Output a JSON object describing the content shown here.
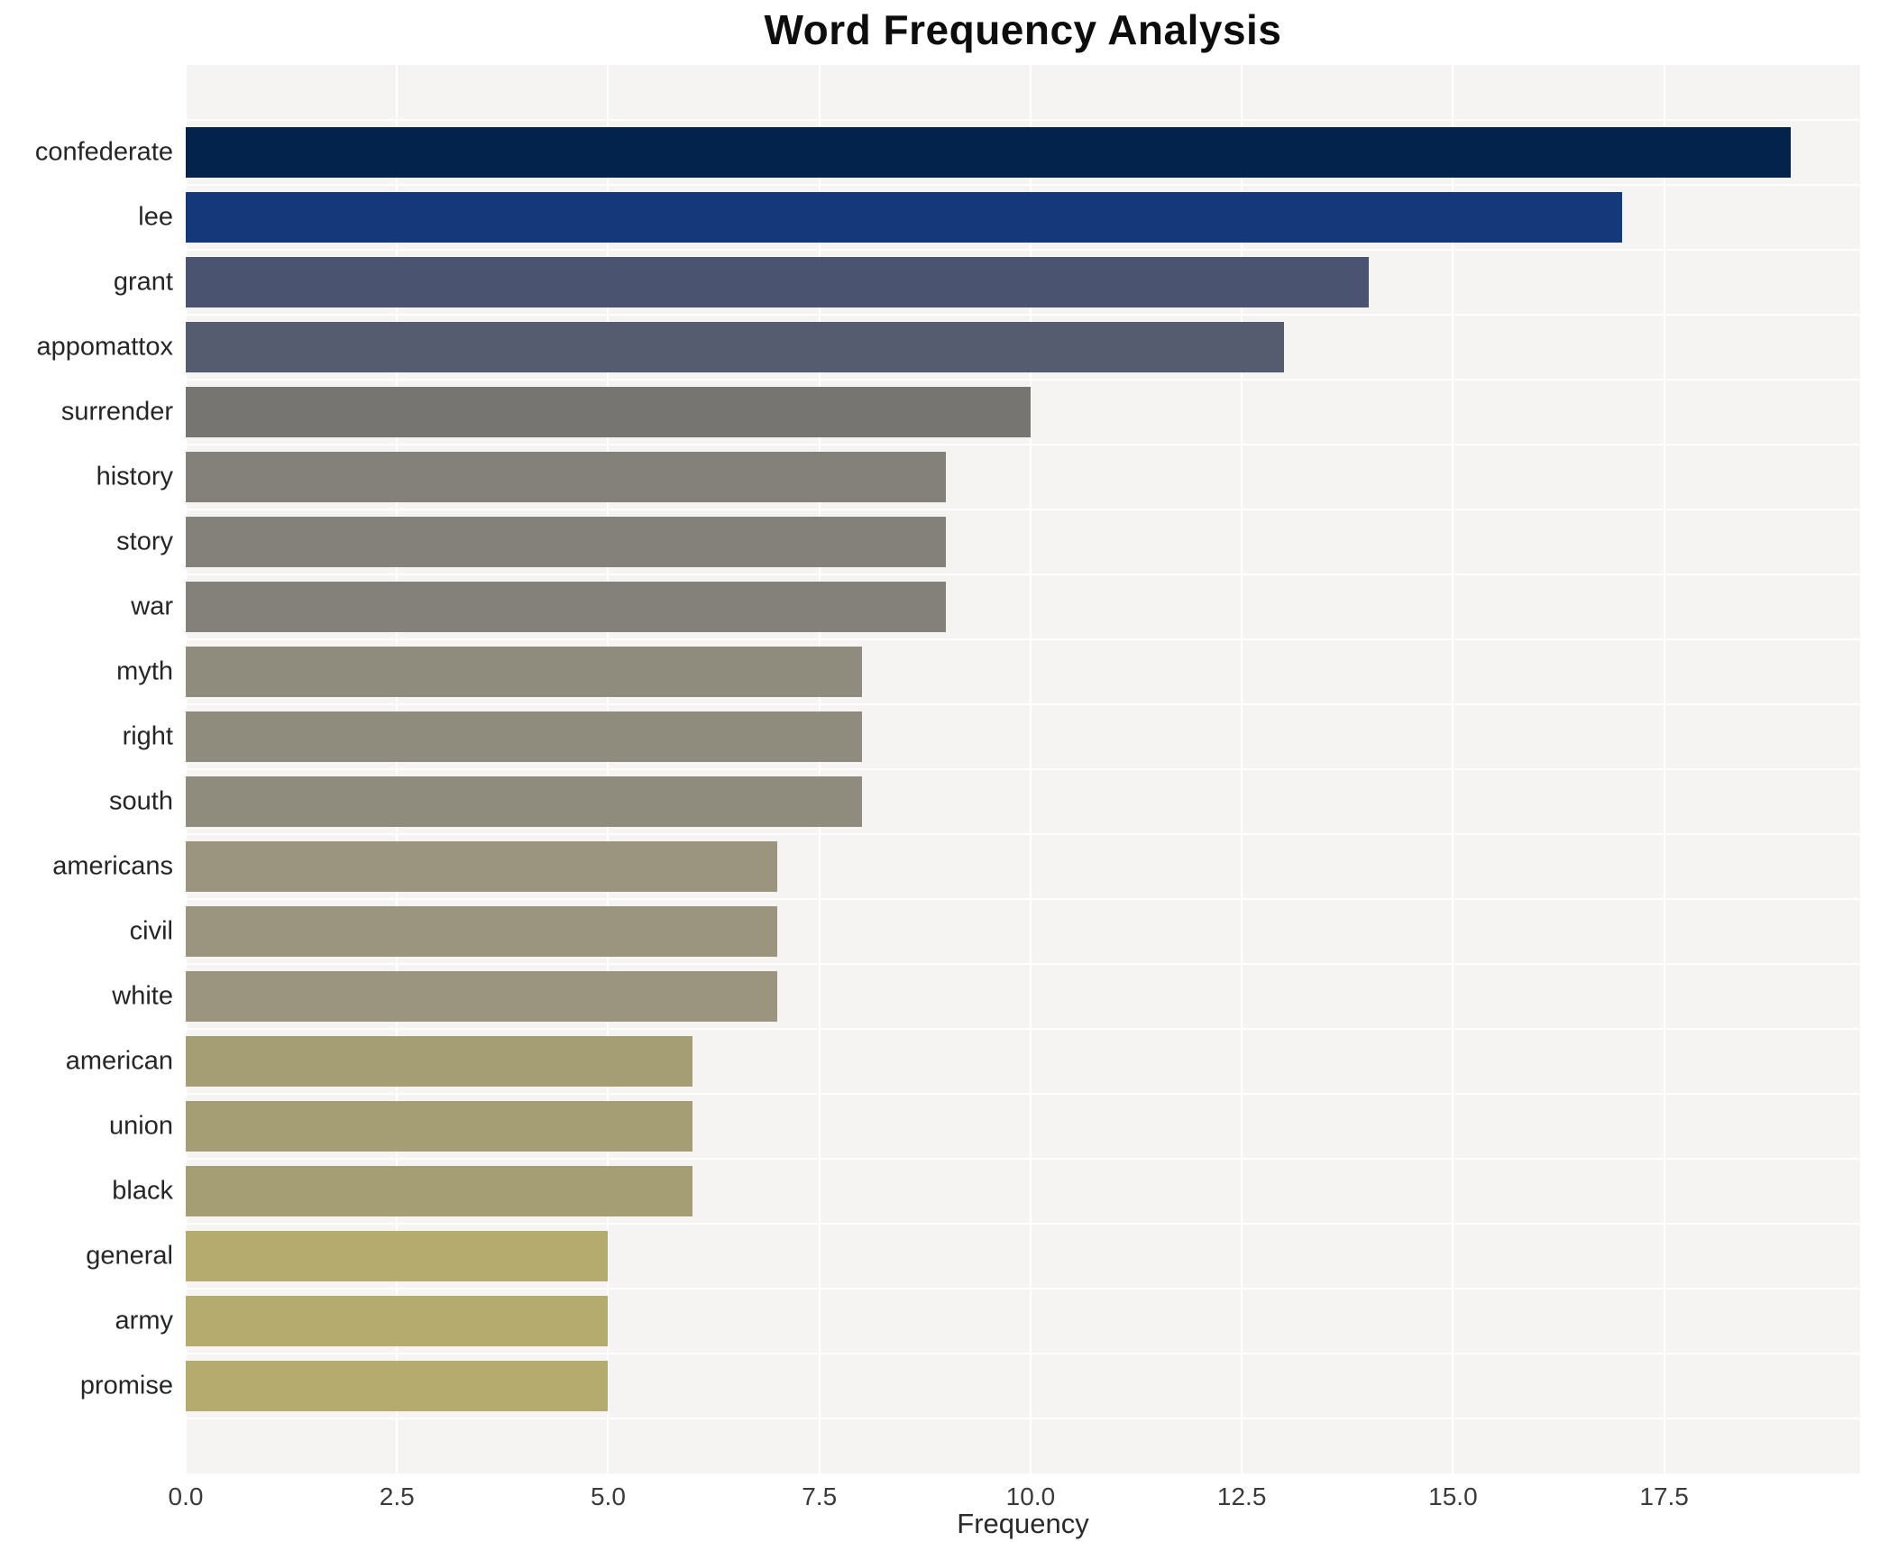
{
  "title": "Word Frequency Analysis",
  "colors": {
    "figure_background": "#ffffff",
    "plot_background": "#f5f4f2",
    "gridline": "#ffffff",
    "title_text": "#0d0d0d",
    "label_text": "#262626",
    "tick_text": "#3a3a3a"
  },
  "chart_data": {
    "type": "bar",
    "orientation": "horizontal",
    "title": "Word Frequency Analysis",
    "xlabel": "Frequency",
    "ylabel": "",
    "xlim": [
      0,
      19.82
    ],
    "grid": "white vertical lines at major x ticks, white lines at category boundaries",
    "legend": "none",
    "categories": [
      "confederate",
      "lee",
      "grant",
      "appomattox",
      "surrender",
      "history",
      "story",
      "war",
      "myth",
      "right",
      "south",
      "americans",
      "civil",
      "white",
      "american",
      "union",
      "black",
      "general",
      "army",
      "promise"
    ],
    "values": [
      19,
      17,
      14,
      13,
      10,
      9,
      9,
      9,
      8,
      8,
      8,
      7,
      7,
      7,
      6,
      6,
      6,
      5,
      5,
      5
    ],
    "bar_colors": [
      "#03224c",
      "#14387a",
      "#4a5470",
      "#565c70",
      "#767572",
      "#84817a",
      "#84817a",
      "#84817a",
      "#908c7d",
      "#908c7d",
      "#908c7d",
      "#9b947e",
      "#9b947e",
      "#9b947e",
      "#a59d74",
      "#a59d74",
      "#a59d74",
      "#b5ab6e",
      "#b5ab6e",
      "#b5ab6e"
    ],
    "x_tick_labels": [
      "0.0",
      "2.5",
      "5.0",
      "7.5",
      "10.0",
      "12.5",
      "15.0",
      "17.5"
    ],
    "x_tick_values": [
      0,
      2.5,
      5,
      7.5,
      10,
      12.5,
      15,
      17.5
    ]
  }
}
